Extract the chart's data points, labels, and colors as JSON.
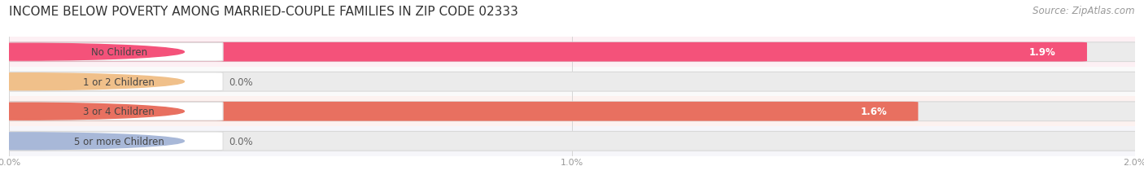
{
  "title": "INCOME BELOW POVERTY AMONG MARRIED-COUPLE FAMILIES IN ZIP CODE 02333",
  "source": "Source: ZipAtlas.com",
  "categories": [
    "No Children",
    "1 or 2 Children",
    "3 or 4 Children",
    "5 or more Children"
  ],
  "values": [
    1.9,
    0.0,
    1.6,
    0.0
  ],
  "bar_colors": [
    "#F4527A",
    "#F0C08A",
    "#E87060",
    "#A8B8D8"
  ],
  "bar_bg_color": "#EEEEEE",
  "xlim": [
    0,
    2.0
  ],
  "xticks": [
    0.0,
    1.0,
    2.0
  ],
  "xtick_labels": [
    "0.0%",
    "1.0%",
    "2.0%"
  ],
  "title_fontsize": 11,
  "source_fontsize": 8.5,
  "bar_label_fontsize": 8.5,
  "value_fontsize": 8.5,
  "fig_bg_color": "#FFFFFF",
  "bar_height": 0.62,
  "row_bg_colors": [
    "#FDF0F4",
    "#FAFAFA",
    "#FDF2F0",
    "#F6F6FA"
  ]
}
